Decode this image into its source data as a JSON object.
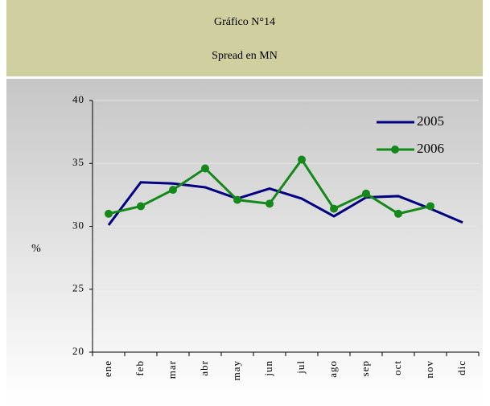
{
  "chart_data": {
    "type": "line",
    "title": "Gráfico N°14",
    "subtitle": "Spread en MN",
    "ylabel": "%",
    "categories": [
      "ene",
      "feb",
      "mar",
      "abr",
      "may",
      "jun",
      "jul",
      "ago",
      "sep",
      "oct",
      "nov",
      "dic"
    ],
    "series": [
      {
        "name": "2005",
        "color": "#000080",
        "marker": false,
        "values": [
          30.1,
          33.5,
          33.4,
          33.1,
          32.2,
          33.0,
          32.2,
          30.8,
          32.3,
          32.4,
          31.4,
          30.3
        ]
      },
      {
        "name": "2006",
        "color": "#14891a",
        "marker": true,
        "values": [
          31.0,
          31.6,
          32.9,
          34.6,
          32.1,
          31.8,
          35.3,
          31.4,
          32.6,
          31.0,
          31.6,
          null
        ]
      }
    ],
    "ylim": [
      20,
      40
    ],
    "yticks": [
      20,
      25,
      30,
      35,
      40
    ],
    "grid": true,
    "legend": "upper right"
  }
}
